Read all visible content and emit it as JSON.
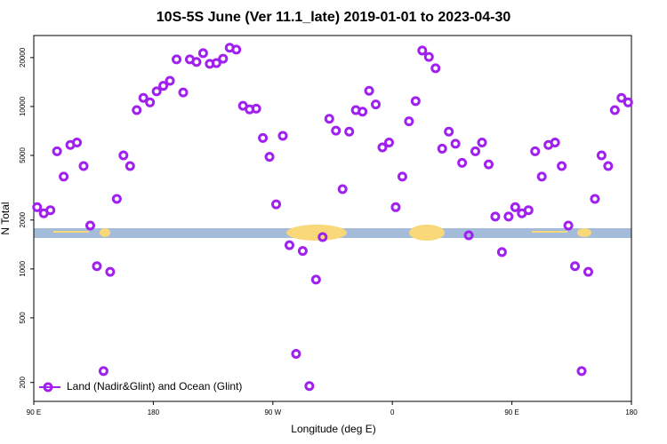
{
  "chart_data": {
    "type": "scatter",
    "title": "10S-5S June (Ver 11.1_late)   2019-01-01 to 2023-04-30",
    "x_label": "Longitude (deg E)",
    "y_label": "N Total",
    "log_y": true,
    "xlim": [
      90,
      540
    ],
    "xticks": [
      {
        "value": 90,
        "label": "90 E"
      },
      {
        "value": 180,
        "label": "180"
      },
      {
        "value": 270,
        "label": "90 W"
      },
      {
        "value": 360,
        "label": "0"
      },
      {
        "value": 450,
        "label": "90 E"
      },
      {
        "value": 540,
        "label": "180"
      }
    ],
    "ylim": [
      153,
      27350
    ],
    "yticks": [
      200,
      500,
      1000,
      2000,
      5000,
      10000,
      20000
    ],
    "legend": "bottom-left",
    "series": [
      {
        "name": "Land (Nadir&Glint) and Ocean (Glint)",
        "color": "#a020f0",
        "x": [
          92.5,
          97.5,
          102.5,
          107.5,
          112.5,
          117.5,
          122.5,
          127.5,
          132.5,
          137.5,
          142.5,
          147.5,
          152.5,
          157.5,
          162.5,
          167.5,
          172.5,
          177.5,
          182.5,
          187.5,
          192.5,
          197.5,
          202.5,
          207.5,
          212.5,
          217.5,
          222.5,
          227.5,
          232.5,
          237.5,
          242.5,
          247.5,
          252.5,
          257.5,
          262.5,
          267.5,
          272.5,
          277.5,
          282.5,
          287.5,
          292.5,
          297.5,
          302.5,
          307.5,
          312.5,
          317.5,
          322.5,
          327.5,
          332.5,
          337.5,
          342.5,
          347.5,
          352.5,
          357.5,
          362.5,
          367.5,
          372.5,
          377.5,
          382.5,
          387.5,
          392.5,
          397.5,
          402.5,
          407.5,
          412.5,
          417.5,
          422.5,
          427.5,
          432.5,
          437.5,
          442.5,
          447.5,
          452.5,
          457.5,
          462.5,
          467.5,
          472.5,
          477.5,
          482.5,
          487.5,
          492.5,
          497.5,
          502.5,
          507.5,
          512.5,
          517.5,
          522.5,
          527.5,
          532.5,
          537.5
        ],
        "values": [
          2400,
          2200,
          2300,
          5300,
          3700,
          5800,
          6000,
          4300,
          1850,
          1040,
          235,
          960,
          2700,
          5000,
          4300,
          9500,
          11300,
          10600,
          12400,
          13400,
          14400,
          19500,
          12200,
          19500,
          18800,
          21300,
          18300,
          18500,
          19700,
          23000,
          22400,
          10100,
          9600,
          9700,
          6400,
          4900,
          2500,
          6600,
          1400,
          300,
          1290,
          190,
          860,
          1570,
          8400,
          7100,
          3100,
          7000,
          9500,
          9300,
          12500,
          10300,
          5600,
          6000,
          2400,
          3700,
          8100,
          10800,
          22100,
          20200,
          17200,
          5500,
          7000,
          5900,
          4500,
          1610,
          5300,
          6000,
          4400,
          2100,
          1270,
          2100,
          2400,
          2200,
          2300,
          5300,
          3700,
          5800,
          6000,
          4300,
          1850,
          1040,
          235,
          960,
          2700,
          5000,
          4300,
          9500,
          11300,
          10600
        ]
      }
    ]
  }
}
